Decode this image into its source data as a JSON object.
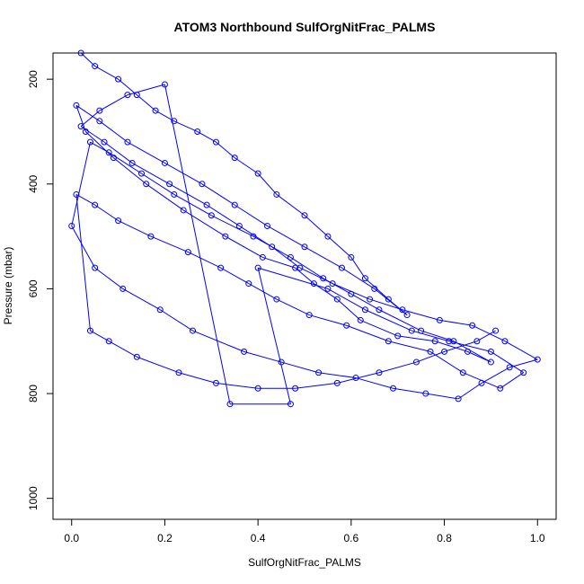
{
  "chart_data": {
    "type": "line",
    "title": "ATOM3 Northbound SulfOrgNitFrac_PALMS",
    "xlabel": "SulfOrgNitFrac_PALMS",
    "ylabel": "Pressure (mbar)",
    "xlim": [
      -0.04,
      1.04
    ],
    "ylim": [
      1040,
      150
    ],
    "y_reversed": true,
    "grid": false,
    "xticks": [
      {
        "value": 0.0,
        "label": "0.0"
      },
      {
        "value": 0.2,
        "label": "0.2"
      },
      {
        "value": 0.4,
        "label": "0.4"
      },
      {
        "value": 0.6,
        "label": "0.6"
      },
      {
        "value": 0.8,
        "label": "0.8"
      },
      {
        "value": 1.0,
        "label": "1.0"
      }
    ],
    "yticks": [
      {
        "value": 200,
        "label": "200"
      },
      {
        "value": 400,
        "label": "400"
      },
      {
        "value": 600,
        "label": "600"
      },
      {
        "value": 800,
        "label": "800"
      },
      {
        "value": 1000,
        "label": "1000"
      }
    ],
    "series_color": "#0000ff",
    "marker": "open-circle",
    "x": [
      0.02,
      0.05,
      0.1,
      0.14,
      0.18,
      0.22,
      0.27,
      0.31,
      0.35,
      0.4,
      0.44,
      0.5,
      0.55,
      0.6,
      0.63,
      0.68,
      0.72,
      0.65,
      0.58,
      0.5,
      0.42,
      0.35,
      0.28,
      0.2,
      0.12,
      0.06,
      0.01,
      0.03,
      0.09,
      0.16,
      0.24,
      0.33,
      0.41,
      0.48,
      0.52,
      0.57,
      0.62,
      0.7,
      0.78,
      0.85,
      0.9,
      0.82,
      0.75,
      0.66,
      0.6,
      0.54,
      0.47,
      0.39,
      0.3,
      0.22,
      0.15,
      0.08,
      0.04,
      0.0,
      0.05,
      0.11,
      0.19,
      0.26,
      0.37,
      0.45,
      0.53,
      0.61,
      0.69,
      0.76,
      0.83,
      0.88,
      0.94,
      1.0,
      0.93,
      0.86,
      0.79,
      0.71,
      0.64,
      0.56,
      0.49,
      0.43,
      0.36,
      0.29,
      0.21,
      0.13,
      0.07,
      0.02,
      0.06,
      0.12,
      0.2,
      0.34,
      0.47,
      0.4,
      0.55,
      0.63,
      0.73,
      0.81,
      0.9,
      0.97,
      0.92,
      0.84,
      0.77,
      0.68,
      0.59,
      0.51,
      0.44,
      0.38,
      0.32,
      0.25,
      0.17,
      0.1,
      0.05,
      0.01,
      0.04,
      0.08,
      0.14,
      0.23,
      0.31,
      0.4,
      0.48,
      0.57,
      0.66,
      0.74,
      0.8,
      0.87,
      0.91
    ],
    "y": [
      150,
      175,
      200,
      230,
      260,
      280,
      300,
      320,
      350,
      380,
      420,
      460,
      500,
      540,
      580,
      620,
      650,
      600,
      560,
      520,
      480,
      440,
      400,
      360,
      320,
      280,
      250,
      300,
      350,
      400,
      450,
      500,
      540,
      560,
      590,
      620,
      660,
      690,
      700,
      720,
      740,
      700,
      680,
      640,
      610,
      580,
      540,
      500,
      460,
      420,
      380,
      340,
      320,
      480,
      560,
      600,
      640,
      680,
      720,
      740,
      760,
      770,
      790,
      800,
      810,
      780,
      750,
      735,
      700,
      670,
      660,
      640,
      620,
      590,
      560,
      520,
      480,
      440,
      400,
      360,
      320,
      290,
      260,
      230,
      210,
      820,
      820,
      560,
      600,
      640,
      680,
      700,
      720,
      760,
      790,
      760,
      720,
      700,
      670,
      650,
      620,
      590,
      560,
      530,
      500,
      470,
      440,
      420,
      680,
      700,
      730,
      760,
      780,
      790,
      790,
      780,
      760,
      740,
      720,
      700,
      680
    ]
  }
}
